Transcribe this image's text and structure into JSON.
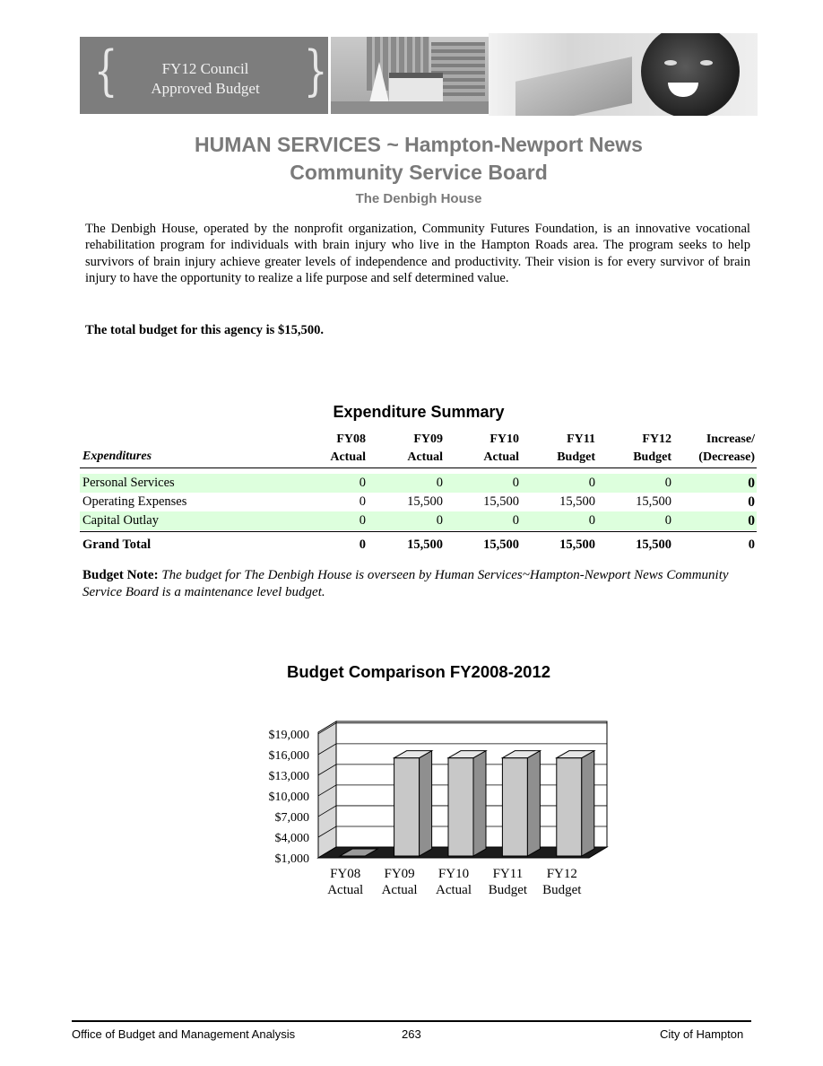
{
  "banner": {
    "title_line1": "FY12 Council",
    "title_line2": "Approved Budget"
  },
  "heading": {
    "line1": "HUMAN SERVICES ~ Hampton-Newport News",
    "line2": "Community Service Board",
    "subtitle": "The Denbigh House"
  },
  "intro": "The Denbigh House, operated by the nonprofit organization, Community Futures Foundation,  is an innovative vocational rehabilitation program for individuals with brain injury who live in the Hampton Roads area.  The program seeks to help survivors of brain injury achieve greater levels of independence and productivity.  Their vision is for every survivor of brain injury to have the opportunity to realize a life purpose and self determined value.",
  "total_statement": "The total budget for this agency is $15,500.",
  "expenditure_summary": {
    "title": "Expenditure Summary",
    "row_header": "Expenditures",
    "columns": [
      {
        "line1": "FY08",
        "line2": "Actual"
      },
      {
        "line1": "FY09",
        "line2": "Actual"
      },
      {
        "line1": "FY10",
        "line2": "Actual"
      },
      {
        "line1": "FY11",
        "line2": "Budget"
      },
      {
        "line1": "FY12",
        "line2": "Budget"
      },
      {
        "line1": "Increase/",
        "line2": "(Decrease)"
      }
    ],
    "rows": [
      {
        "label": "Personal Services",
        "values": [
          "0",
          "0",
          "0",
          "0",
          "0",
          "0"
        ]
      },
      {
        "label": "Operating Expenses",
        "values": [
          "0",
          "15,500",
          "15,500",
          "15,500",
          "15,500",
          "0"
        ]
      },
      {
        "label": "Capital Outlay",
        "values": [
          "0",
          "0",
          "0",
          "0",
          "0",
          "0"
        ]
      }
    ],
    "grand_total": {
      "label": "Grand Total",
      "values": [
        "0",
        "15,500",
        "15,500",
        "15,500",
        "15,500",
        "0"
      ]
    }
  },
  "budget_note": {
    "label": "Budget Note",
    "text": "The budget for The Denbigh House is overseen by Human Services~Hampton-Newport News Community Service Board is a maintenance level budget."
  },
  "chart_data": {
    "type": "bar",
    "title": "Budget Comparison FY2008-2012",
    "categories": [
      {
        "line1": "FY08",
        "line2": "Actual"
      },
      {
        "line1": "FY09",
        "line2": "Actual"
      },
      {
        "line1": "FY10",
        "line2": "Actual"
      },
      {
        "line1": "FY11",
        "line2": "Budget"
      },
      {
        "line1": "FY12",
        "line2": "Budget"
      }
    ],
    "values": [
      0,
      15500,
      15500,
      15500,
      15500
    ],
    "yticks": [
      "$1,000",
      "$4,000",
      "$7,000",
      "$10,000",
      "$13,000",
      "$16,000",
      "$19,000"
    ],
    "ytick_values": [
      1000,
      4000,
      7000,
      10000,
      13000,
      16000,
      19000
    ],
    "ylim": [
      1000,
      20800
    ],
    "grid": true,
    "style": "3d",
    "colors": {
      "bar_front": "#c8c8c8",
      "bar_side": "#8f8f8f",
      "bar_top": "#e6e6e6",
      "wall": "#d7d7d7",
      "floor": "#1c1c1c"
    }
  },
  "footer": {
    "left": "Office of Budget and Management Analysis",
    "page": "263",
    "right": "City of Hampton"
  }
}
